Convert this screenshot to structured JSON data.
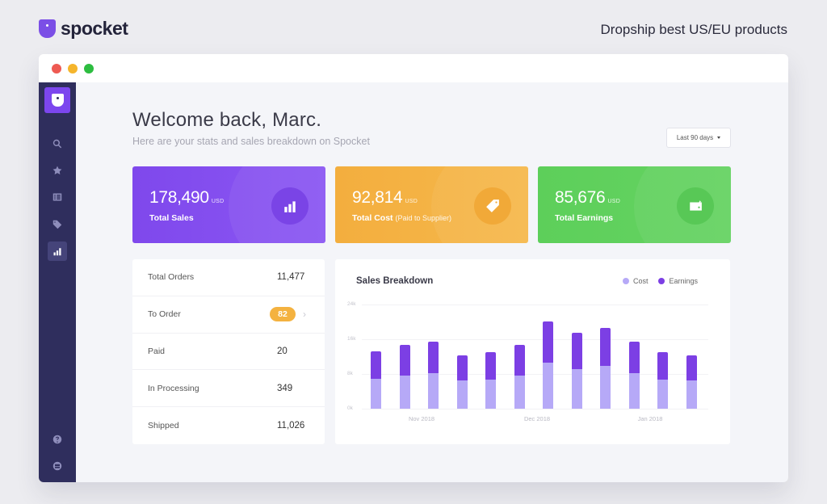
{
  "brand": {
    "name": "spocket",
    "tagline": "Dropship best US/EU products"
  },
  "window": {
    "controls": [
      "close",
      "minimize",
      "maximize"
    ]
  },
  "sidebar": {
    "logo_icon": "pocket-logo-icon",
    "items": [
      {
        "name": "search",
        "icon": "search-icon",
        "active": false
      },
      {
        "name": "favorites",
        "icon": "star-icon",
        "active": false
      },
      {
        "name": "list",
        "icon": "list-icon",
        "active": false
      },
      {
        "name": "tags",
        "icon": "tag-icon",
        "active": false
      },
      {
        "name": "analytics",
        "icon": "bar-chart-icon",
        "active": true
      }
    ],
    "bottom_items": [
      {
        "name": "help",
        "icon": "help-icon"
      },
      {
        "name": "store",
        "icon": "store-icon"
      }
    ]
  },
  "header": {
    "title": "Welcome back, Marc.",
    "subtitle": "Here are your stats and sales breakdown on Spocket",
    "range_label": "Last 90 days"
  },
  "stats": [
    {
      "value": "178,490",
      "unit": "USD",
      "label": "Total Sales",
      "note": "",
      "icon": "bar-chart-icon",
      "color": "#8350ef"
    },
    {
      "value": "92,814",
      "unit": "USD",
      "label": "Total Cost",
      "note": "(Paid to Supplier)",
      "icon": "tag-icon",
      "color": "#f5b347"
    },
    {
      "value": "85,676",
      "unit": "USD",
      "label": "Total Earnings",
      "note": "",
      "icon": "wallet-icon",
      "color": "#61d15e"
    }
  ],
  "orders": [
    {
      "label": "Total Orders",
      "value": "11,477"
    },
    {
      "label": "To Order",
      "value": "82",
      "badge": true
    },
    {
      "label": "Paid",
      "value": "20"
    },
    {
      "label": "In Processing",
      "value": "349"
    },
    {
      "label": "Shipped",
      "value": "11,026"
    }
  ],
  "chart": {
    "title": "Sales Breakdown",
    "legend": [
      {
        "label": "Cost",
        "color": "#b6a9f7"
      },
      {
        "label": "Earnings",
        "color": "#7c3fe4"
      }
    ],
    "y_ticks": [
      "24k",
      "16k",
      "8k",
      "0k"
    ],
    "x_ticks": [
      "Nov 2018",
      "Dec 2018",
      "Jan 2018"
    ]
  },
  "chart_data": {
    "type": "bar",
    "stacked": true,
    "title": "Sales Breakdown",
    "xlabel": "",
    "ylabel": "",
    "ylim": [
      0,
      24
    ],
    "y_unit": "k",
    "y_ticks": [
      "0k",
      "8k",
      "16k",
      "24k"
    ],
    "x_tick_labels": [
      "Nov 2018",
      "Dec 2018",
      "Jan 2018"
    ],
    "categories": [
      "1",
      "2",
      "3",
      "4",
      "5",
      "6",
      "7",
      "8",
      "9",
      "10",
      "11",
      "12"
    ],
    "series": [
      {
        "name": "Cost",
        "color": "#b6a9f7",
        "values": [
          6.9,
          7.6,
          8.2,
          6.5,
          6.7,
          7.6,
          10.6,
          9.1,
          9.8,
          8.2,
          6.7,
          6.5
        ]
      },
      {
        "name": "Earnings",
        "color": "#7c3fe4",
        "values": [
          6.3,
          7.1,
          7.3,
          5.8,
          6.3,
          7.1,
          9.5,
          8.4,
          8.9,
          7.3,
          6.3,
          5.8
        ]
      }
    ],
    "grid": true,
    "legend_position": "top-right"
  }
}
